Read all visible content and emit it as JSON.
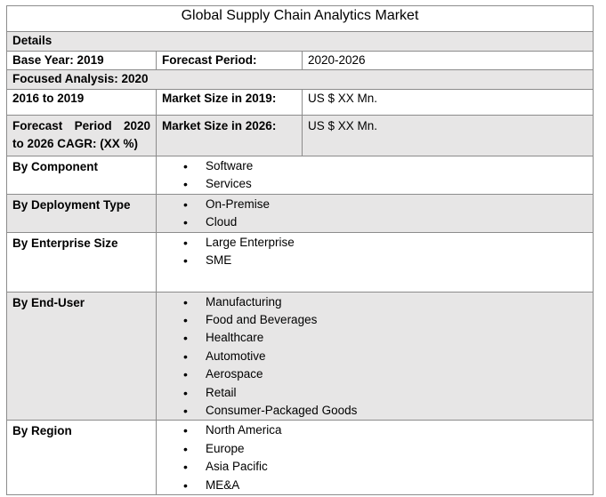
{
  "title": "Global Supply Chain Analytics Market",
  "details_label": "Details",
  "base_year_label": "Base Year: 2019",
  "forecast_period_label": "Forecast Period:",
  "forecast_period_value": "2020-2026",
  "focused_analysis_label": "Focused Analysis: 2020",
  "historical_label": "2016 to 2019",
  "market_size_2019_label": "Market Size in 2019:",
  "market_size_2019_value": "US $ XX Mn.",
  "cagr_label_line1": "Forecast  Period  2020",
  "cagr_label_line2": "to 2026 CAGR: (XX %)",
  "market_size_2026_label": "Market Size in 2026:",
  "market_size_2026_value": "US $ XX Mn.",
  "segments": [
    {
      "label": "By Component",
      "items": [
        "Software",
        "Services"
      ]
    },
    {
      "label": "By Deployment Type",
      "items": [
        "On-Premise",
        "Cloud"
      ]
    },
    {
      "label": "By Enterprise Size",
      "items": [
        "Large Enterprise",
        "SME"
      ]
    },
    {
      "label": "By End-User",
      "items": [
        "Manufacturing",
        "Food and Beverages",
        "Healthcare",
        "Automotive",
        "Aerospace",
        "Retail",
        "Consumer-Packaged Goods"
      ]
    },
    {
      "label": "By Region",
      "items": [
        "North America",
        "Europe",
        "Asia Pacific",
        "ME&A"
      ]
    }
  ]
}
